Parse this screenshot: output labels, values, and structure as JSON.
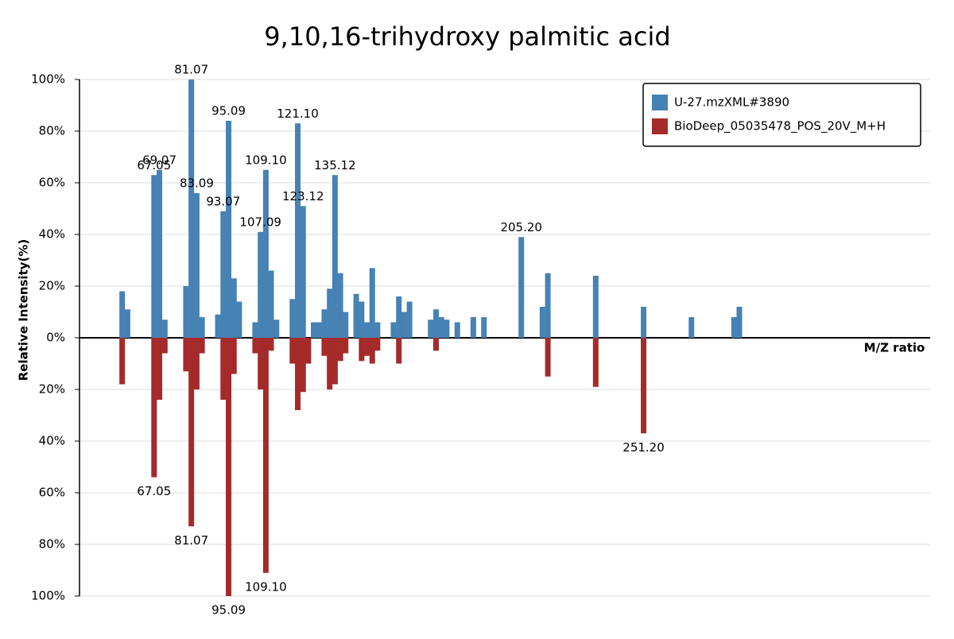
{
  "chart_data": {
    "type": "mirror-bar",
    "title": "9,10,16-trihydroxy palmitic acid",
    "x_label": "M/Z ratio",
    "y_label": "Relative Intensity(%)",
    "xlim": [
      39,
      359
    ],
    "ylim": [
      -100,
      100
    ],
    "yticks": [
      {
        "value": 100,
        "label": "100%"
      },
      {
        "value": 80,
        "label": "80%"
      },
      {
        "value": 60,
        "label": "60%"
      },
      {
        "value": 40,
        "label": "40%"
      },
      {
        "value": 20,
        "label": "20%"
      },
      {
        "value": 0,
        "label": "0%"
      },
      {
        "value": -20,
        "label": "20%"
      },
      {
        "value": -40,
        "label": "40%"
      },
      {
        "value": -60,
        "label": "60%"
      },
      {
        "value": -80,
        "label": "80%"
      },
      {
        "value": -100,
        "label": "100%"
      }
    ],
    "grid": true,
    "legend": "top-right",
    "series": [
      {
        "name": "U-27.mzXML#3890",
        "color": "#4682b4",
        "x": [
          55.05,
          57.07,
          67.05,
          69.07,
          71.09,
          79.05,
          81.07,
          83.09,
          85.1,
          91.05,
          93.07,
          95.09,
          97.1,
          99.08,
          105.07,
          107.09,
          109.1,
          111.08,
          113.1,
          119.09,
          121.1,
          123.12,
          127.08,
          129.1,
          131.09,
          133.1,
          135.12,
          137.13,
          139.11,
          143.1,
          145.12,
          147.12,
          149.13,
          151.11,
          157.12,
          159.14,
          161.13,
          163.15,
          171.1,
          173.13,
          175.15,
          177.13,
          181.14,
          187.15,
          191.14,
          205.2,
          213.16,
          215.18,
          233.19,
          251.2,
          269.21,
          285.24,
          287.22
        ],
        "values": [
          18,
          11,
          63,
          65,
          7,
          20,
          100,
          56,
          8,
          9,
          49,
          84,
          23,
          14,
          6,
          41,
          65,
          26,
          7,
          15,
          83,
          51,
          6,
          6,
          11,
          19,
          63,
          25,
          10,
          17,
          14,
          6,
          27,
          6,
          6,
          16,
          10,
          14,
          7,
          11,
          8,
          7,
          6,
          8,
          8,
          39,
          12,
          25,
          24,
          12,
          8,
          8,
          12
        ],
        "labels": [
          null,
          null,
          "67.05",
          "69.07",
          null,
          null,
          "81.07",
          "83.09",
          null,
          null,
          "93.07",
          "95.09",
          null,
          null,
          null,
          "107.09",
          "109.10",
          null,
          null,
          null,
          "121.10",
          "123.12",
          null,
          null,
          null,
          null,
          "135.12",
          null,
          null,
          null,
          null,
          null,
          null,
          null,
          null,
          null,
          null,
          null,
          null,
          null,
          null,
          null,
          null,
          null,
          null,
          "205.20",
          null,
          null,
          null,
          null,
          null,
          null,
          null
        ]
      },
      {
        "name": "BioDeep_05035478_POS_20V_M+H",
        "color": "#a52a2a",
        "x": [
          55.05,
          67.05,
          69.07,
          71.09,
          79.05,
          81.07,
          83.09,
          85.1,
          93.07,
          95.09,
          97.1,
          105.07,
          107.09,
          109.1,
          111.08,
          119.09,
          121.1,
          123.12,
          125.1,
          131.09,
          133.1,
          135.12,
          137.13,
          139.11,
          145.12,
          147.12,
          149.13,
          151.11,
          159.14,
          173.13,
          215.18,
          233.19,
          251.2
        ],
        "values": [
          -18,
          -54,
          -24,
          -6,
          -13,
          -73,
          -20,
          -6,
          -24,
          -100,
          -14,
          -6,
          -20,
          -91,
          -5,
          -10,
          -28,
          -21,
          -10,
          -7,
          -20,
          -18,
          -9,
          -6,
          -9,
          -7,
          -10,
          -5,
          -10,
          -5,
          -15,
          -19,
          -37
        ],
        "labels": [
          null,
          "67.05",
          null,
          null,
          null,
          "81.07",
          null,
          null,
          null,
          "95.09",
          null,
          null,
          null,
          "109.10",
          null,
          null,
          null,
          null,
          null,
          null,
          null,
          null,
          null,
          null,
          null,
          null,
          null,
          null,
          null,
          null,
          null,
          null,
          "251.20"
        ]
      }
    ]
  }
}
